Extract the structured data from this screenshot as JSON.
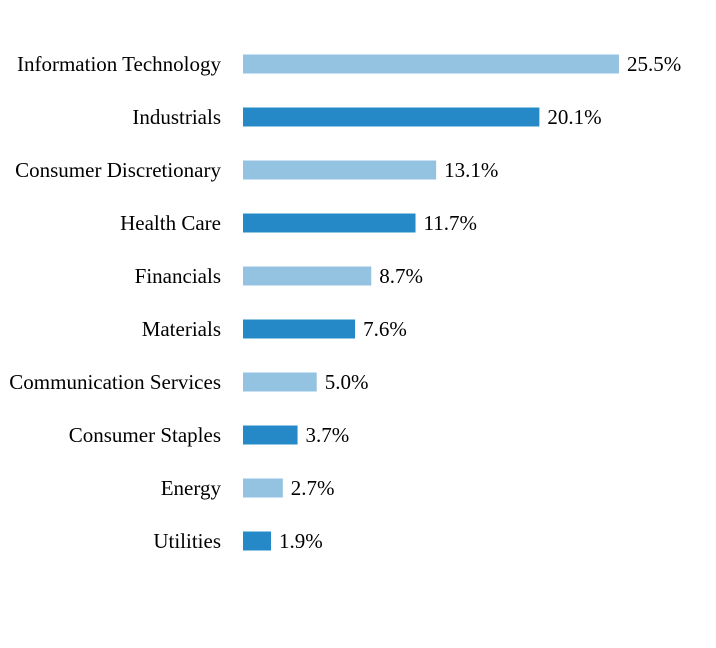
{
  "chart_data": {
    "type": "bar",
    "orientation": "horizontal",
    "title": "",
    "xlabel": "",
    "ylabel": "",
    "xlim": [
      0,
      25.5
    ],
    "grid": false,
    "categories": [
      "Information Technology",
      "Industrials",
      "Consumer Discretionary",
      "Health Care",
      "Financials",
      "Materials",
      "Communication Services",
      "Consumer Staples",
      "Energy",
      "Utilities"
    ],
    "values": [
      25.5,
      20.1,
      13.1,
      11.7,
      8.7,
      7.6,
      5.0,
      3.7,
      2.7,
      1.9
    ],
    "value_labels": [
      "25.5%",
      "20.1%",
      "13.1%",
      "11.7%",
      "8.7%",
      "7.6%",
      "5.0%",
      "3.7%",
      "2.7%",
      "1.9%"
    ],
    "colors": [
      "#93c3e1",
      "#2589c8"
    ]
  }
}
